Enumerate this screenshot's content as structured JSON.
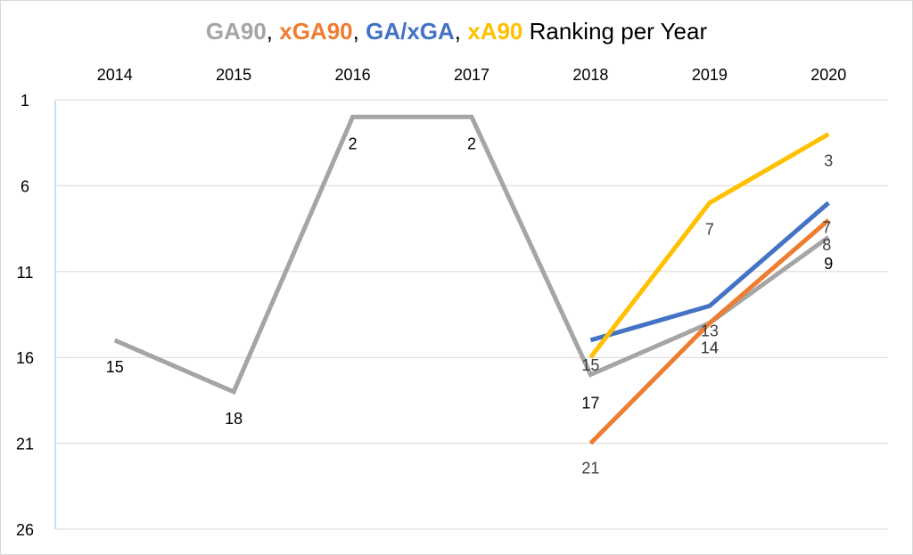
{
  "title": {
    "parts": [
      {
        "text": "GA90",
        "color": "#a5a5a5",
        "bold": true
      },
      {
        "text": ", ",
        "color": "#000000",
        "bold": false
      },
      {
        "text": "xGA90",
        "color": "#ed7d31",
        "bold": true
      },
      {
        "text": ", ",
        "color": "#000000",
        "bold": false
      },
      {
        "text": "GA/xGA",
        "color": "#4472c4",
        "bold": true
      },
      {
        "text": ", ",
        "color": "#000000",
        "bold": false
      },
      {
        "text": "xA90",
        "color": "#ffc000",
        "bold": true
      },
      {
        "text": " Ranking per Year",
        "color": "#000000",
        "bold": false
      }
    ]
  },
  "chart_data": {
    "type": "line",
    "categories": [
      "2014",
      "2015",
      "2016",
      "2017",
      "2018",
      "2019",
      "2020"
    ],
    "y_ticks": [
      "1",
      "6",
      "11",
      "16",
      "21",
      "26"
    ],
    "ylim": [
      1,
      26
    ],
    "y_reversed": true,
    "x_axis_position": "top",
    "grid": true,
    "series": [
      {
        "name": "GA90",
        "color": "#a5a5a5",
        "values": [
          15,
          18,
          2,
          2,
          17,
          14,
          9
        ],
        "labels": [
          "15",
          "18",
          "2",
          "2",
          "17",
          "14",
          "9"
        ]
      },
      {
        "name": "xGA90",
        "color": "#ed7d31",
        "values": [
          null,
          null,
          null,
          null,
          21,
          14,
          8
        ],
        "labels": [
          "",
          "",
          "",
          "",
          "21",
          "14",
          "8"
        ]
      },
      {
        "name": "GA/xGA",
        "color": "#4472c4",
        "values": [
          null,
          null,
          null,
          null,
          15,
          13,
          7
        ],
        "labels": [
          "",
          "",
          "",
          "",
          "15",
          "13",
          "7"
        ]
      },
      {
        "name": "xA90",
        "color": "#ffc000",
        "values": [
          null,
          null,
          null,
          null,
          16,
          7,
          3
        ],
        "labels": [
          "",
          "",
          "",
          "",
          "",
          "7",
          "3"
        ]
      }
    ]
  }
}
